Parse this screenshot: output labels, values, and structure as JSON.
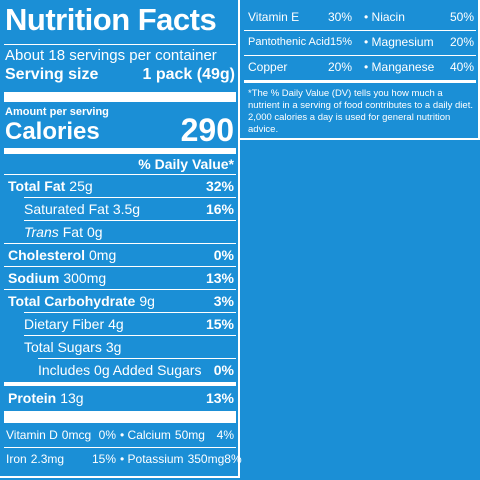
{
  "title": "Nutrition Facts",
  "servings_per_container": "About 18 servings per container",
  "serving_size": {
    "label": "Serving size",
    "amount": "1 pack (49g)"
  },
  "amount_per_serving": "Amount per serving",
  "calories": {
    "label": "Calories",
    "value": "290"
  },
  "daily_value_header": "% Daily Value*",
  "nutrients": [
    {
      "name": "Total Fat",
      "amount": "25g",
      "dv": "32%"
    },
    {
      "name": "Saturated Fat",
      "amount": "3.5g",
      "dv": "16%"
    },
    {
      "name_italic": "Trans",
      "name": "Fat",
      "amount": "0g"
    },
    {
      "name": "Cholesterol",
      "amount": "0mg",
      "dv": "0%"
    },
    {
      "name": "Sodium",
      "amount": "300mg",
      "dv": "13%"
    },
    {
      "name": "Total Carbohydrate",
      "amount": "9g",
      "dv": "3%"
    },
    {
      "name": "Dietary Fiber",
      "amount": "4g",
      "dv": "15%"
    },
    {
      "name": "Total Sugars",
      "amount": "3g"
    },
    {
      "name": "Includes 0g Added Sugars",
      "dv": "0%"
    },
    {
      "name": "Protein",
      "amount": "13g",
      "dv": "13%"
    }
  ],
  "vitamins_minerals": [
    [
      {
        "name": "Vitamin D",
        "amount": "0mcg",
        "dv": "0%"
      },
      {
        "name": "• Calcium",
        "amount": "50mg",
        "dv": "4%"
      }
    ],
    [
      {
        "name": "Iron",
        "amount": "2.3mg",
        "dv": "15%"
      },
      {
        "name": "• Potassium",
        "amount": "350mg",
        "dv": "8%"
      }
    ]
  ],
  "right_panel": {
    "rows": [
      [
        {
          "name": "Vitamin E",
          "dv": "30%"
        },
        {
          "name": "• Niacin",
          "dv": "50%"
        }
      ],
      [
        {
          "name": "Pantothenic Acid",
          "dv": "15%"
        },
        {
          "name": "• Magnesium",
          "dv": "20%"
        }
      ],
      [
        {
          "name": "Copper",
          "dv": "20%"
        },
        {
          "name": "• Manganese",
          "dv": "40%"
        }
      ]
    ],
    "footnote": "*The % Daily Value (DV) tells you how much a nutrient in a serving of food contributes to a daily diet. 2,000 calories a day is used for general nutrition advice."
  }
}
